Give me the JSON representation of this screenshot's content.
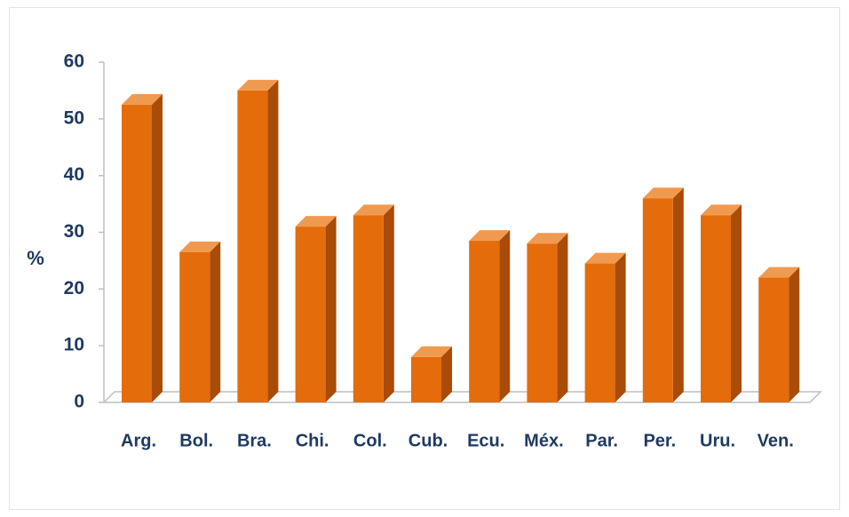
{
  "chart_data": {
    "type": "bar",
    "ylabel": "%",
    "ylim": [
      0,
      60
    ],
    "yticks": [
      0,
      10,
      20,
      30,
      40,
      50,
      60
    ],
    "categories": [
      "Arg.",
      "Bol.",
      "Bra.",
      "Chi.",
      "Col.",
      "Cub.",
      "Ecu.",
      "Méx.",
      "Par.",
      "Per.",
      "Uru.",
      "Ven."
    ],
    "values": [
      52.5,
      26.5,
      55,
      31,
      33,
      8,
      28.5,
      28,
      24.5,
      36,
      33,
      22
    ],
    "bar_color": "#e46c0a",
    "bar_side_color": "#a84c08",
    "bar_top_color": "#f09a50",
    "grid": false,
    "style": "3d-column"
  }
}
